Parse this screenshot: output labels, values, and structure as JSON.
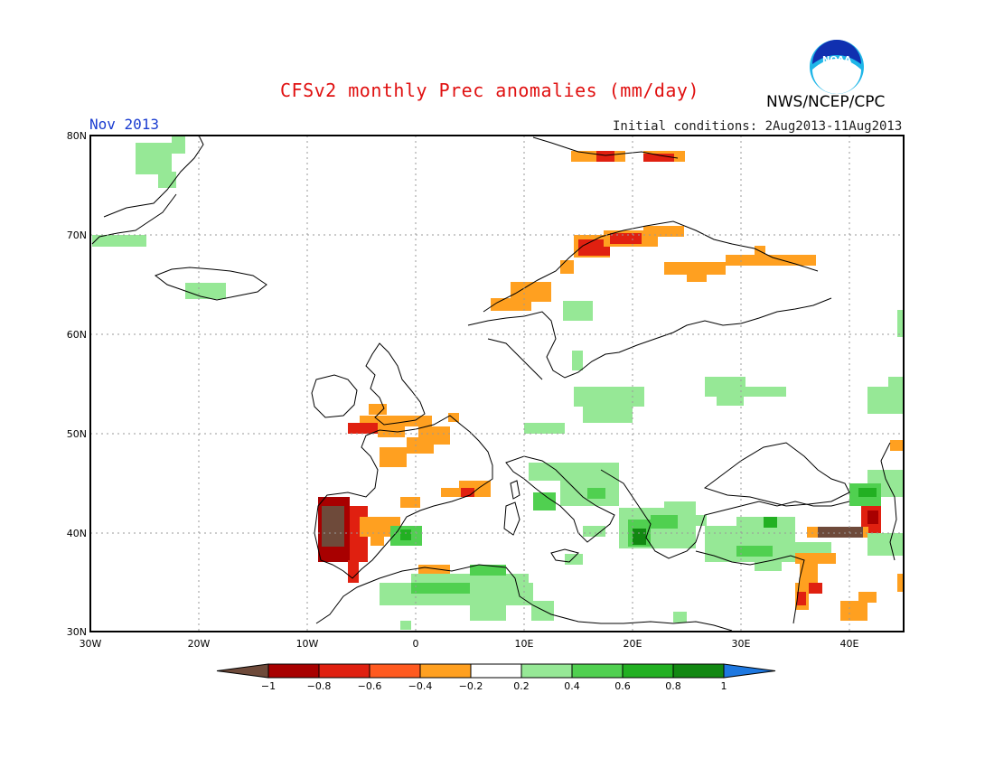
{
  "header": {
    "title": "CFSv2 monthly Prec anomalies (mm/day)",
    "month": "Nov 2013",
    "initial_conditions": "Initial conditions: 2Aug2013-11Aug2013",
    "agency": "NWS/NCEP/CPC",
    "logo_text": "NOAA"
  },
  "axes": {
    "lat_labels": [
      "80N",
      "70N",
      "60N",
      "50N",
      "40N",
      "30N"
    ],
    "lon_labels": [
      "30W",
      "20W",
      "10W",
      "0",
      "10E",
      "20E",
      "30E",
      "40E"
    ]
  },
  "colorbar": {
    "tick_labels": [
      "−1",
      "−0.8",
      "−0.6",
      "−0.4",
      "−0.2",
      "0.2",
      "0.4",
      "0.6",
      "0.8",
      "1"
    ],
    "colors": [
      "#6e4a3a",
      "#a80000",
      "#e02010",
      "#ff5a20",
      "#ffa020",
      "#ffffff",
      "#96e896",
      "#50d050",
      "#22b022",
      "#128812",
      "#1e78e0"
    ]
  },
  "map_colors": {
    "ocean": "#ffffff",
    "coast": "#000000",
    "grid": "#888888"
  }
}
